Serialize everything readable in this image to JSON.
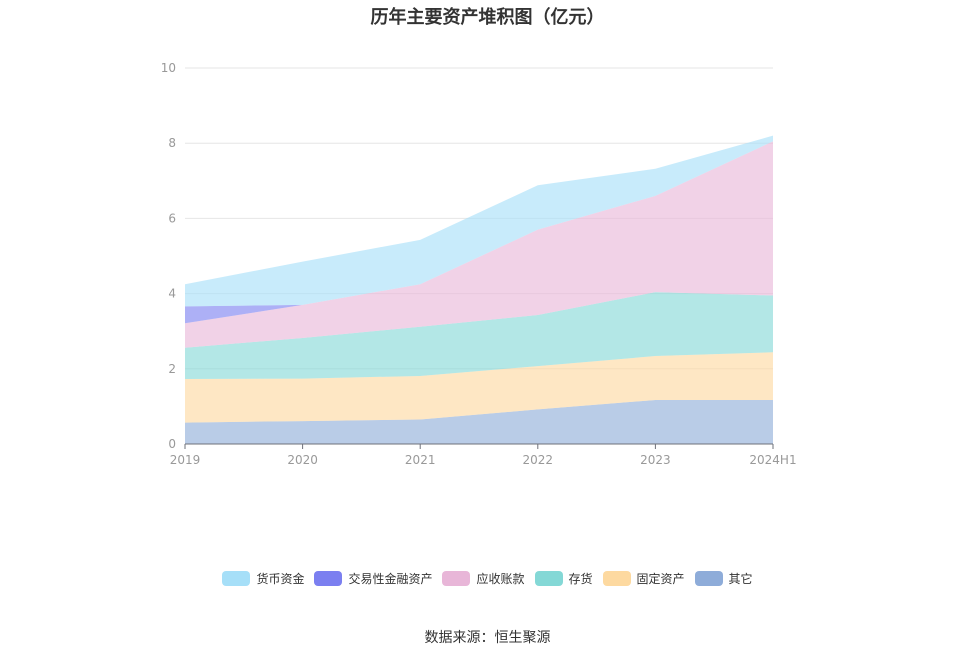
{
  "chart_data": {
    "type": "area",
    "stacked": true,
    "title": "历年主要资产堆积图（亿元）",
    "categories": [
      "2019",
      "2020",
      "2021",
      "2022",
      "2023",
      "2024H1"
    ],
    "ylim": [
      0,
      10
    ],
    "yticks": [
      0,
      2,
      4,
      6,
      8,
      10
    ],
    "grid": true,
    "legend_position": "bottom",
    "series": [
      {
        "name": "其它",
        "color": "#8eacd9",
        "values": [
          0.57,
          0.61,
          0.65,
          0.92,
          1.17,
          1.17
        ]
      },
      {
        "name": "固定资产",
        "color": "#fdd9a0",
        "values": [
          1.16,
          1.13,
          1.16,
          1.15,
          1.17,
          1.27
        ]
      },
      {
        "name": "存货",
        "color": "#84d8d6",
        "values": [
          0.83,
          1.08,
          1.31,
          1.36,
          1.7,
          1.51
        ]
      },
      {
        "name": "应收账款",
        "color": "#e8b6d8",
        "values": [
          0.65,
          0.88,
          1.13,
          2.27,
          2.56,
          4.1
        ]
      },
      {
        "name": "交易性金融资产",
        "color": "#7b7ff0",
        "values": [
          0.45,
          0,
          0,
          0,
          0,
          0
        ]
      },
      {
        "name": "货币资金",
        "color": "#a6dff8",
        "values": [
          0.59,
          1.15,
          1.18,
          1.18,
          0.72,
          0.15
        ]
      }
    ],
    "legend_order": [
      "货币资金",
      "交易性金融资产",
      "应收账款",
      "存货",
      "固定资产",
      "其它"
    ]
  },
  "source_text": "数据来源：恒生聚源"
}
